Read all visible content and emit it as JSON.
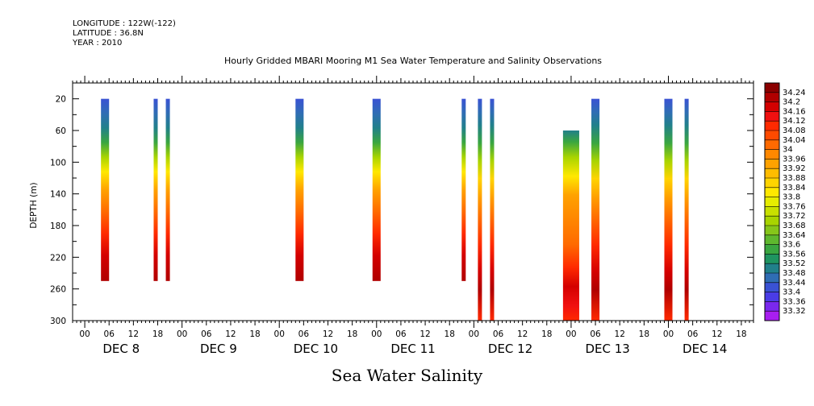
{
  "header": {
    "longitude": "LONGITUDE : 122W(-122)",
    "latitude": "LATITUDE : 36.8N",
    "year": "YEAR : 2010",
    "title": "Hourly Gridded MBARI Mooring M1 Sea Water Temperature and Salinity Observations",
    "variable_title": "Sea Water Salinity"
  },
  "chart_data": {
    "type": "heatmap",
    "title": "Hourly Gridded MBARI Mooring M1 Sea Water Temperature and Salinity Observations",
    "variable": "Sea Water Salinity",
    "ylabel": "DEPTH (m)",
    "ylim": [
      300,
      0
    ],
    "y_ticks": [
      20,
      60,
      100,
      140,
      180,
      220,
      260,
      300
    ],
    "x_hour_ticks": [
      "00",
      "06",
      "12",
      "18",
      "00",
      "06",
      "12",
      "18",
      "00",
      "06",
      "12",
      "18",
      "00",
      "06",
      "12",
      "18",
      "00",
      "06",
      "12",
      "18",
      "00",
      "06",
      "12",
      "18",
      "00",
      "06",
      "12",
      "18"
    ],
    "x_day_labels": [
      "DEC  8",
      "DEC  9",
      "DEC 10",
      "DEC 11",
      "DEC 12",
      "DEC 13",
      "DEC 14"
    ],
    "xlim_hours": [
      -3,
      165
    ],
    "colorbar": {
      "levels": [
        34.24,
        34.2,
        34.16,
        34.12,
        34.08,
        34.04,
        34,
        33.96,
        33.92,
        33.88,
        33.84,
        33.8,
        33.76,
        33.72,
        33.68,
        33.64,
        33.6,
        33.56,
        33.52,
        33.48,
        33.44,
        33.4,
        33.36,
        33.32
      ],
      "colors": [
        "#8b0000",
        "#b00000",
        "#d40000",
        "#f01010",
        "#ff2a00",
        "#ff4a00",
        "#ff6a00",
        "#ff8800",
        "#ffa200",
        "#ffbc00",
        "#ffd400",
        "#ffe800",
        "#e6ec00",
        "#c8e000",
        "#a8d400",
        "#86c61a",
        "#5fb82e",
        "#3aa640",
        "#1f9460",
        "#21808a",
        "#2f6db4",
        "#3a52d4",
        "#4a3ce6",
        "#7a28ee",
        "#a81ef0"
      ]
    },
    "columns": [
      {
        "start_hour": 4,
        "end_hour": 6,
        "depth_top": 20,
        "depth_bottom": 250
      },
      {
        "start_hour": 17,
        "end_hour": 18,
        "depth_top": 20,
        "depth_bottom": 250
      },
      {
        "start_hour": 20,
        "end_hour": 21,
        "depth_top": 20,
        "depth_bottom": 250
      },
      {
        "start_hour": 52,
        "end_hour": 54,
        "depth_top": 20,
        "depth_bottom": 250
      },
      {
        "start_hour": 71,
        "end_hour": 73,
        "depth_top": 20,
        "depth_bottom": 250
      },
      {
        "start_hour": 93,
        "end_hour": 94,
        "depth_top": 20,
        "depth_bottom": 250
      },
      {
        "start_hour": 97,
        "end_hour": 98,
        "depth_top": 20,
        "depth_bottom": 300
      },
      {
        "start_hour": 100,
        "end_hour": 101,
        "depth_top": 20,
        "depth_bottom": 300
      },
      {
        "start_hour": 118,
        "end_hour": 122,
        "depth_top": 60,
        "depth_bottom": 300
      },
      {
        "start_hour": 125,
        "end_hour": 127,
        "depth_top": 20,
        "depth_bottom": 300
      },
      {
        "start_hour": 143,
        "end_hour": 145,
        "depth_top": 20,
        "depth_bottom": 300
      },
      {
        "start_hour": 148,
        "end_hour": 149,
        "depth_top": 20,
        "depth_bottom": 300
      }
    ]
  }
}
